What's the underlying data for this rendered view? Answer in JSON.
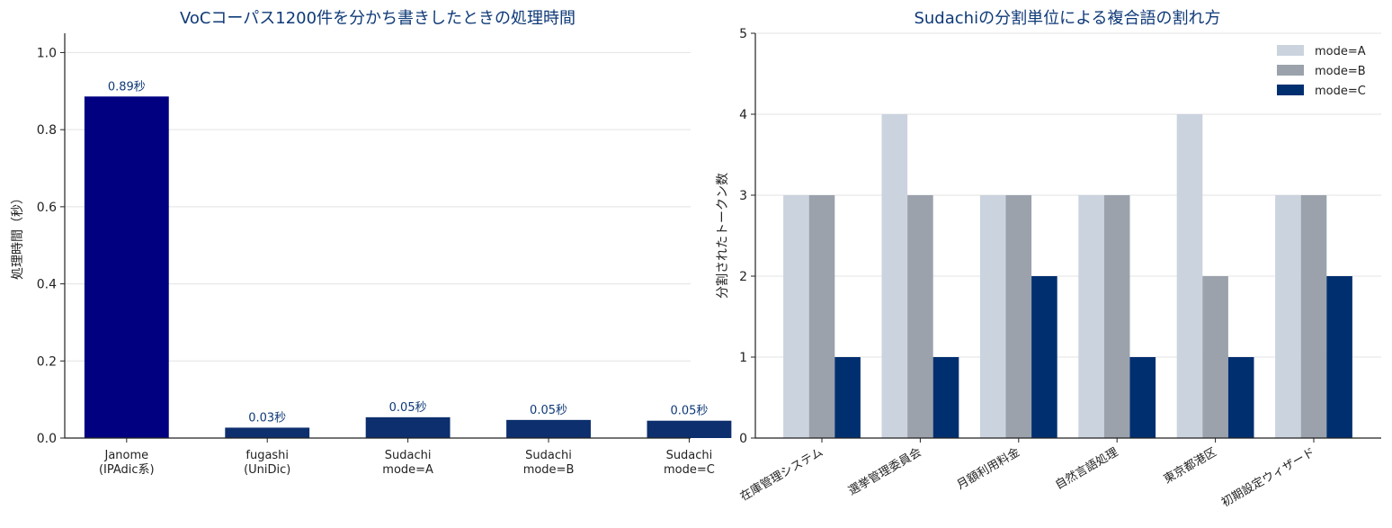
{
  "chart_data": [
    {
      "type": "bar",
      "title": "VoCコーパス1200件を分かち書きしたときの処理時間",
      "xlabel": "",
      "ylabel": "処理時間（秒）",
      "categories": [
        "Janome\n(IPAdic系)",
        "fugashi\n(UniDic)",
        "Sudachi\nmode=A",
        "Sudachi\nmode=B",
        "Sudachi\nmode=C"
      ],
      "values": [
        0.886,
        0.027,
        0.054,
        0.047,
        0.045
      ],
      "data_labels": [
        "0.89秒",
        "0.03秒",
        "0.05秒",
        "0.05秒",
        "0.05秒"
      ],
      "colors": [
        "#000080",
        "#0d2f6e",
        "#0d2f6e",
        "#0d2f6e",
        "#0d2f6e"
      ],
      "ylim": [
        0,
        1.05
      ],
      "yticks": [
        0.0,
        0.2,
        0.4,
        0.6,
        0.8,
        1.0
      ],
      "ytick_labels": [
        "0.0",
        "0.2",
        "0.4",
        "0.6",
        "0.8",
        "1.0"
      ],
      "grid": true
    },
    {
      "type": "bar",
      "title": "Sudachiの分割単位による複合語の割れ方",
      "xlabel": "",
      "ylabel": "分割されたトークン数",
      "categories": [
        "在庫管理システム",
        "選挙管理委員会",
        "月額利用料金",
        "自然言語処理",
        "東京都港区",
        "初期設定ウィザード"
      ],
      "series": [
        {
          "name": "mode=A",
          "values": [
            3,
            4,
            3,
            3,
            4,
            3
          ],
          "color": "#cbd3df"
        },
        {
          "name": "mode=B",
          "values": [
            3,
            3,
            3,
            3,
            2,
            3
          ],
          "color": "#9ba2ac"
        },
        {
          "name": "mode=C",
          "values": [
            1,
            1,
            2,
            1,
            1,
            2
          ],
          "color": "#002f70"
        }
      ],
      "ylim": [
        0,
        5
      ],
      "yticks": [
        0,
        1,
        2,
        3,
        4,
        5
      ],
      "ytick_labels": [
        "0",
        "1",
        "2",
        "3",
        "4",
        "5"
      ],
      "grid": true,
      "legend_position": "top-right"
    }
  ]
}
